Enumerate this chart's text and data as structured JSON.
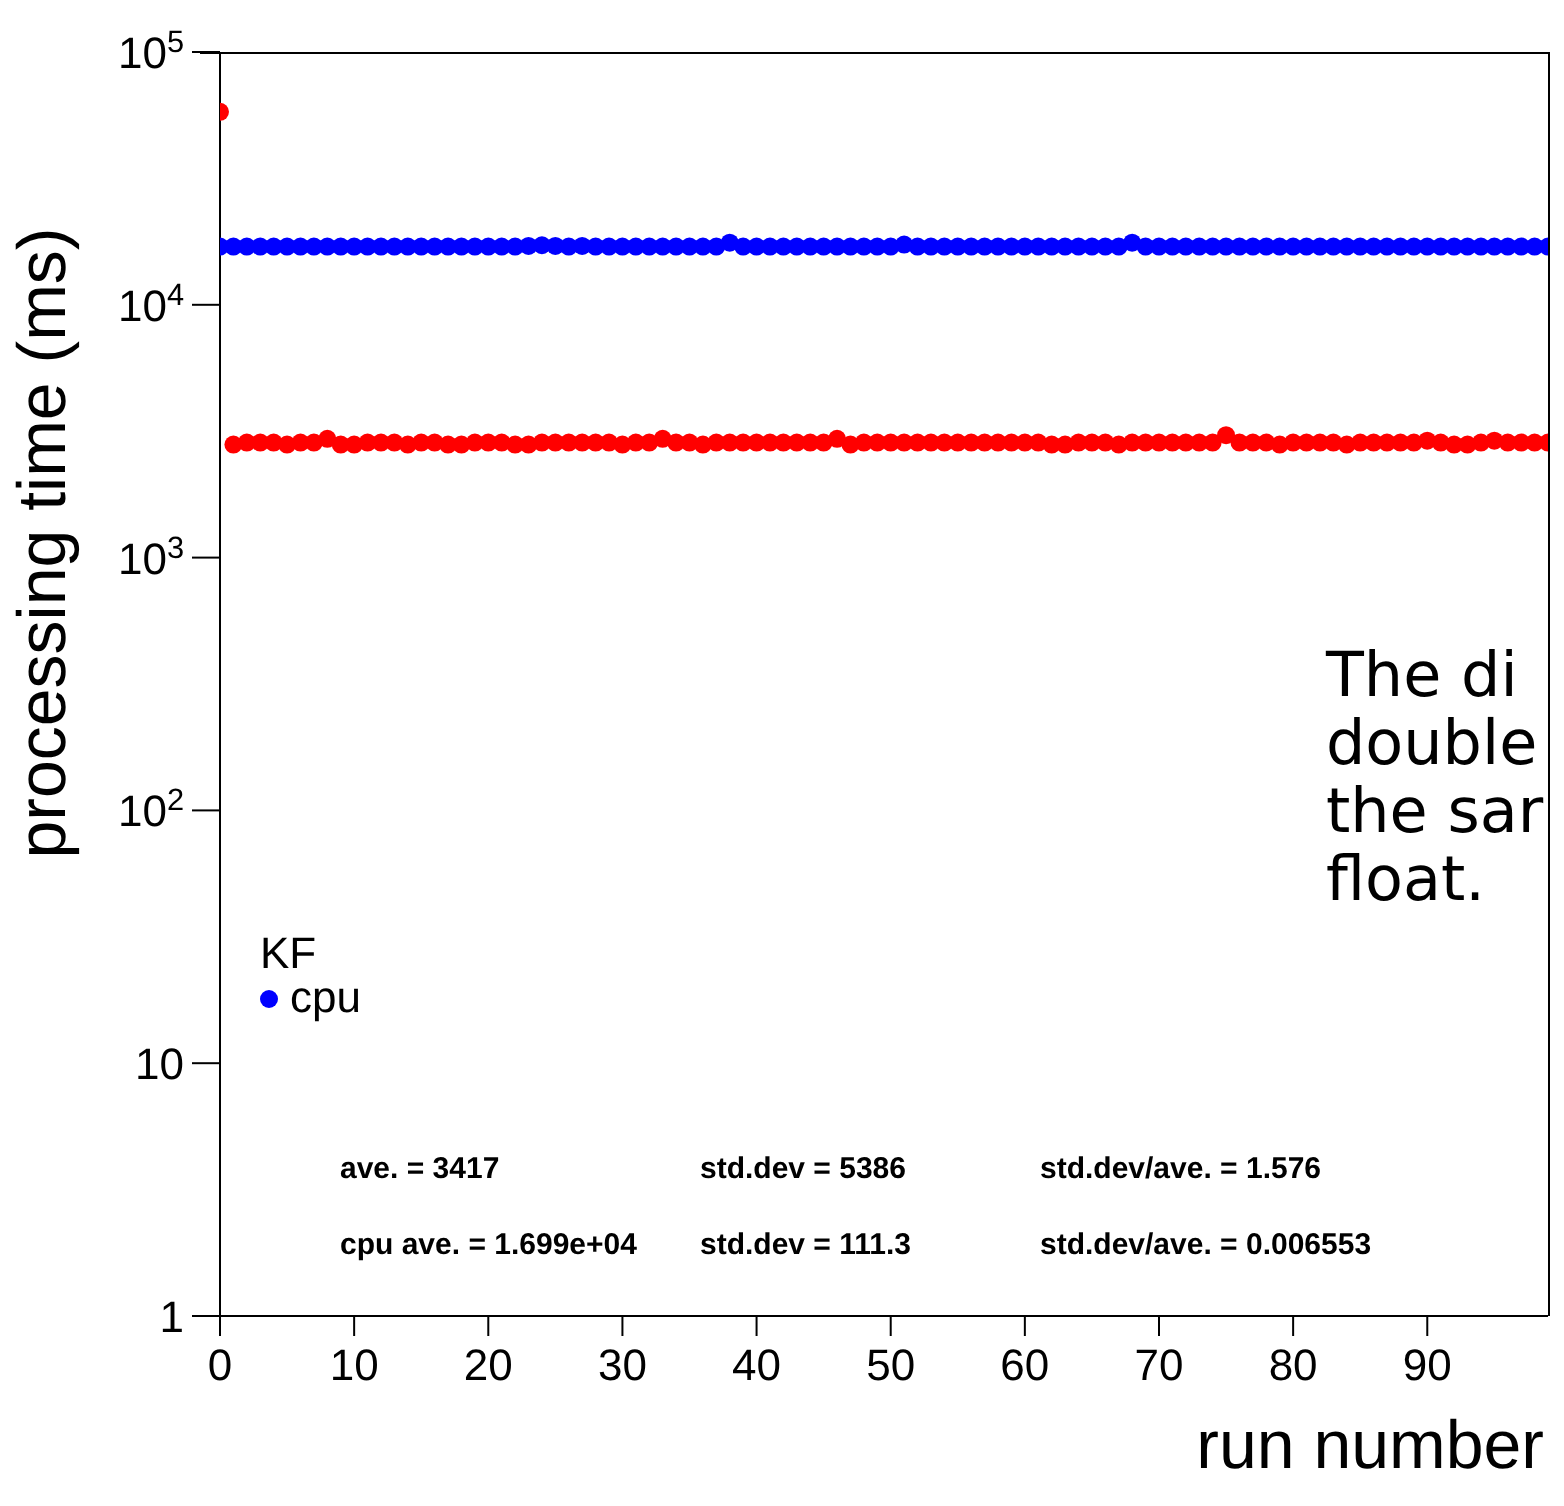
{
  "chart_data": {
    "type": "scatter",
    "xlabel": "run number",
    "ylabel": "processing time (ms)",
    "legend_title": "KF",
    "legend": "left",
    "marker": "circle",
    "grid": false,
    "log": "y",
    "x": [
      0,
      1,
      2,
      3,
      4,
      5,
      6,
      7,
      8,
      9,
      10,
      11,
      12,
      13,
      14,
      15,
      16,
      17,
      18,
      19,
      20,
      21,
      22,
      23,
      24,
      25,
      26,
      27,
      28,
      29,
      30,
      31,
      32,
      33,
      34,
      35,
      36,
      37,
      38,
      39,
      40,
      41,
      42,
      43,
      44,
      45,
      46,
      47,
      48,
      49,
      50,
      51,
      52,
      53,
      54,
      55,
      56,
      57,
      58,
      59,
      60,
      61,
      62,
      63,
      64,
      65,
      66,
      67,
      68,
      69,
      70,
      71,
      72,
      73,
      74,
      75,
      76,
      77,
      78,
      79,
      80,
      81,
      82,
      83,
      84,
      85,
      86,
      87,
      88,
      89,
      90,
      91,
      92,
      93,
      94,
      95,
      96,
      97,
      98,
      99
    ],
    "xlim": [
      0,
      99
    ],
    "xticks": [
      0,
      10,
      20,
      30,
      40,
      50,
      60,
      70,
      80,
      90
    ],
    "ylim": [
      1,
      100000
    ],
    "yticks": [
      1,
      10,
      {
        "value": 100,
        "label": "10$^{2}$"
      },
      {
        "value": 1000,
        "label": "10$^{3}$"
      },
      {
        "value": 10000,
        "label": "10$^{4}$"
      },
      {
        "value": 100000,
        "label": "10$^{5}$"
      }
    ],
    "series": [
      {
        "color": "#ff0000",
        "values": [
          58000,
          2800,
          2850,
          2850,
          2850,
          2800,
          2850,
          2850,
          2950,
          2800,
          2800,
          2850,
          2850,
          2850,
          2800,
          2850,
          2850,
          2800,
          2800,
          2850,
          2850,
          2850,
          2800,
          2800,
          2850,
          2850,
          2850,
          2850,
          2850,
          2850,
          2800,
          2850,
          2850,
          2950,
          2850,
          2850,
          2800,
          2850,
          2850,
          2850,
          2850,
          2850,
          2850,
          2850,
          2850,
          2850,
          2950,
          2800,
          2850,
          2850,
          2850,
          2850,
          2850,
          2850,
          2850,
          2850,
          2850,
          2850,
          2850,
          2850,
          2850,
          2850,
          2800,
          2800,
          2850,
          2850,
          2850,
          2800,
          2850,
          2850,
          2850,
          2850,
          2850,
          2850,
          2850,
          3050,
          2850,
          2850,
          2850,
          2800,
          2850,
          2850,
          2850,
          2850,
          2800,
          2850,
          2850,
          2850,
          2850,
          2850,
          2900,
          2850,
          2800,
          2800,
          2850,
          2900,
          2850,
          2850,
          2850,
          2850
        ]
      },
      {
        "name": "cpu",
        "color": "#0000ff",
        "values": [
          17000,
          17000,
          17000,
          17000,
          17000,
          17000,
          17000,
          17000,
          17000,
          17000,
          17000,
          17000,
          17000,
          17000,
          17000,
          17000,
          17000,
          17000,
          17000,
          17000,
          17000,
          17000,
          17000,
          17100,
          17200,
          17100,
          17000,
          17100,
          17000,
          17000,
          17000,
          17000,
          17000,
          17000,
          17000,
          17000,
          17000,
          17000,
          17600,
          17000,
          17000,
          17000,
          17000,
          17000,
          17000,
          17000,
          17000,
          17000,
          17000,
          17000,
          17000,
          17300,
          17000,
          17000,
          17000,
          17000,
          17000,
          17000,
          17000,
          17000,
          17000,
          17000,
          17000,
          17000,
          17000,
          17000,
          17000,
          17000,
          17600,
          17000,
          17000,
          17000,
          17000,
          17000,
          17000,
          17000,
          17000,
          17000,
          17000,
          17000,
          17000,
          17000,
          17000,
          17000,
          17000,
          17000,
          17000,
          17000,
          17000,
          17000,
          17000,
          17000,
          17000,
          17000,
          17000,
          17000,
          17000,
          17000,
          17000,
          17000
        ]
      }
    ],
    "annotations": [
      "ave. = 3417",
      "std.dev = 5386",
      "std.dev/ave. = 1.576",
      "cpu ave. = 1.699e+04",
      "std.dev = 111.3",
      "std.dev/ave. = 0.006553",
      "The di",
      "double",
      "the sar",
      "float."
    ]
  }
}
